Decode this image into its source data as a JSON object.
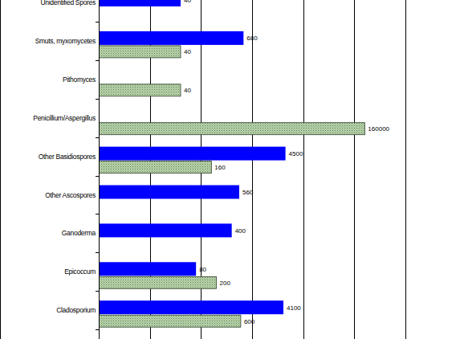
{
  "chart_data": {
    "type": "bar",
    "orientation": "horizontal",
    "categories": [
      "Unidentified Spores",
      "Smuts, myxomycetes",
      "Pithomyces",
      "Penicillium/Aspergillus",
      "Other Basidiospores",
      "Other Ascospores",
      "Ganoderma",
      "Epicoccum",
      "Cladosporium"
    ],
    "series": [
      {
        "color": "#0000ff",
        "values": [
          40,
          680,
          null,
          null,
          4500,
          560,
          400,
          80,
          4100
        ]
      },
      {
        "color": "#b9d4ac",
        "values": [
          null,
          40,
          40,
          160000,
          160,
          null,
          null,
          200,
          600
        ]
      }
    ],
    "xlim": [
      1,
      1000000
    ],
    "xticks": [
      1,
      10,
      100,
      1000,
      10000,
      100000,
      1000000
    ],
    "log": "x",
    "grid": true,
    "data_labels": true,
    "tick_labels": "y"
  }
}
